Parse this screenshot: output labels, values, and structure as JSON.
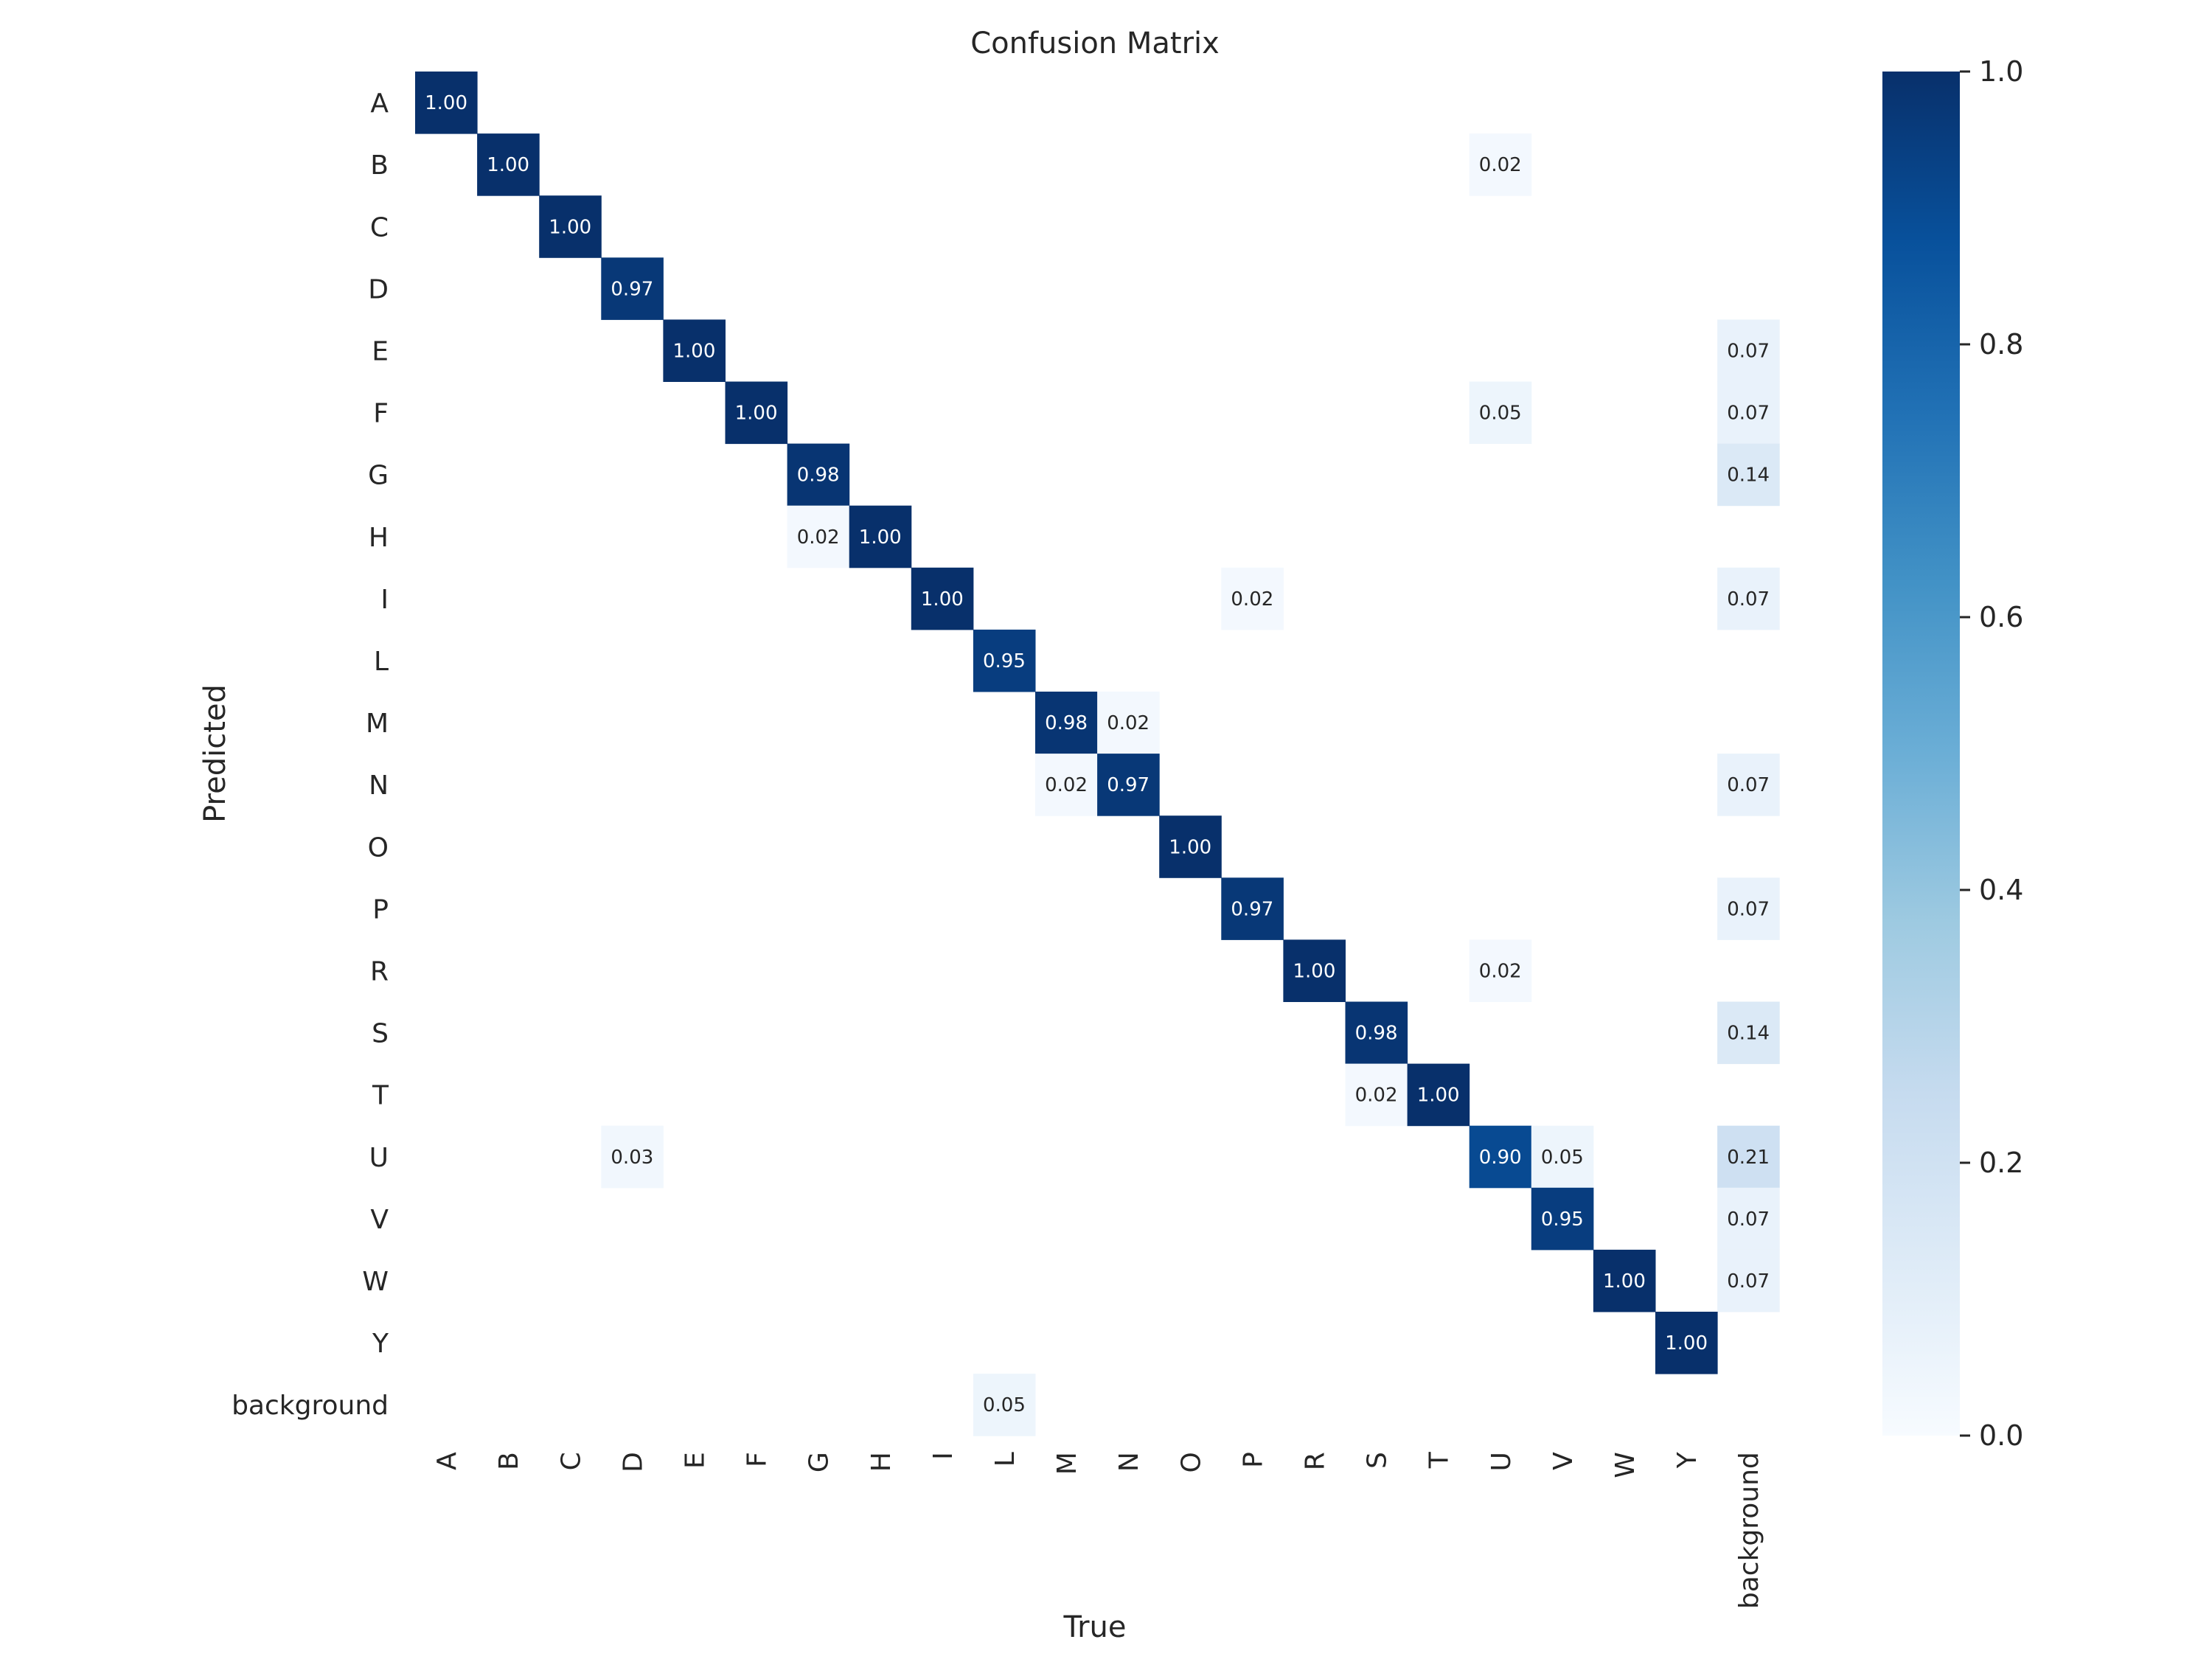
{
  "chart_data": {
    "type": "heatmap",
    "title": "Confusion Matrix",
    "xlabel": "True",
    "ylabel": "Predicted",
    "x_categories": [
      "A",
      "B",
      "C",
      "D",
      "E",
      "F",
      "G",
      "H",
      "I",
      "L",
      "M",
      "N",
      "O",
      "P",
      "R",
      "S",
      "T",
      "U",
      "V",
      "W",
      "Y",
      "background"
    ],
    "y_categories": [
      "A",
      "B",
      "C",
      "D",
      "E",
      "F",
      "G",
      "H",
      "I",
      "L",
      "M",
      "N",
      "O",
      "P",
      "R",
      "S",
      "T",
      "U",
      "V",
      "W",
      "Y",
      "background"
    ],
    "cells": [
      {
        "row": "A",
        "col": "A",
        "value": 1.0
      },
      {
        "row": "B",
        "col": "B",
        "value": 1.0
      },
      {
        "row": "B",
        "col": "U",
        "value": 0.02
      },
      {
        "row": "C",
        "col": "C",
        "value": 1.0
      },
      {
        "row": "D",
        "col": "D",
        "value": 0.97
      },
      {
        "row": "E",
        "col": "E",
        "value": 1.0
      },
      {
        "row": "E",
        "col": "background",
        "value": 0.07
      },
      {
        "row": "F",
        "col": "F",
        "value": 1.0
      },
      {
        "row": "F",
        "col": "U",
        "value": 0.05
      },
      {
        "row": "F",
        "col": "background",
        "value": 0.07
      },
      {
        "row": "G",
        "col": "G",
        "value": 0.98
      },
      {
        "row": "G",
        "col": "background",
        "value": 0.14
      },
      {
        "row": "H",
        "col": "G",
        "value": 0.02
      },
      {
        "row": "H",
        "col": "H",
        "value": 1.0
      },
      {
        "row": "I",
        "col": "I",
        "value": 1.0
      },
      {
        "row": "I",
        "col": "P",
        "value": 0.02
      },
      {
        "row": "I",
        "col": "background",
        "value": 0.07
      },
      {
        "row": "L",
        "col": "L",
        "value": 0.95
      },
      {
        "row": "M",
        "col": "M",
        "value": 0.98
      },
      {
        "row": "M",
        "col": "N",
        "value": 0.02
      },
      {
        "row": "N",
        "col": "M",
        "value": 0.02
      },
      {
        "row": "N",
        "col": "N",
        "value": 0.97
      },
      {
        "row": "N",
        "col": "background",
        "value": 0.07
      },
      {
        "row": "O",
        "col": "O",
        "value": 1.0
      },
      {
        "row": "P",
        "col": "P",
        "value": 0.97
      },
      {
        "row": "P",
        "col": "background",
        "value": 0.07
      },
      {
        "row": "R",
        "col": "R",
        "value": 1.0
      },
      {
        "row": "R",
        "col": "U",
        "value": 0.02
      },
      {
        "row": "S",
        "col": "S",
        "value": 0.98
      },
      {
        "row": "S",
        "col": "background",
        "value": 0.14
      },
      {
        "row": "T",
        "col": "S",
        "value": 0.02
      },
      {
        "row": "T",
        "col": "T",
        "value": 1.0
      },
      {
        "row": "U",
        "col": "D",
        "value": 0.03
      },
      {
        "row": "U",
        "col": "U",
        "value": 0.9
      },
      {
        "row": "U",
        "col": "V",
        "value": 0.05
      },
      {
        "row": "U",
        "col": "background",
        "value": 0.21
      },
      {
        "row": "V",
        "col": "V",
        "value": 0.95
      },
      {
        "row": "V",
        "col": "background",
        "value": 0.07
      },
      {
        "row": "W",
        "col": "W",
        "value": 1.0
      },
      {
        "row": "W",
        "col": "background",
        "value": 0.07
      },
      {
        "row": "Y",
        "col": "Y",
        "value": 1.0
      },
      {
        "row": "background",
        "col": "L",
        "value": 0.05
      }
    ],
    "colorbar": {
      "range": [
        0.0,
        1.0
      ],
      "ticks": [
        "0.0",
        "0.2",
        "0.4",
        "0.6",
        "0.8",
        "1.0"
      ],
      "colormap": "Blues"
    },
    "grid": false
  }
}
